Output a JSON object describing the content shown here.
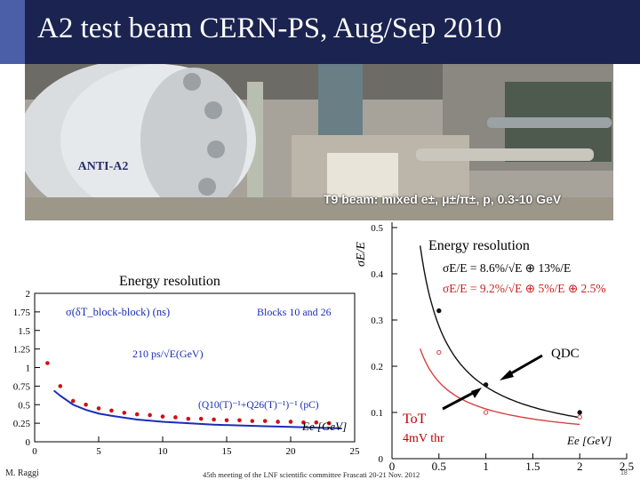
{
  "slide": {
    "title": "A2 test beam CERN-PS, Aug/Sep 2010",
    "beam_label": "T9 beam: mixed e±, μ±/π±, p, 0.3-10 GeV",
    "photo_sign": "ANTI-A2",
    "author": "M. Raggi",
    "meeting": "45th meeting of the LNF scientific committee Frascati 20-21 Nov. 2012",
    "page": "18",
    "colors": {
      "header_bg": "#1b2350",
      "header_accent": "#4a5fa8",
      "title_text": "#ffffff"
    }
  },
  "chart_data": [
    {
      "type": "scatter",
      "title": "Energy resolution",
      "xlabel": "Ee [GeV]",
      "ylabel": "",
      "xlim": [
        0,
        25
      ],
      "ylim": [
        0,
        2
      ],
      "xticks": [
        "0",
        "5",
        "10",
        "15",
        "20",
        "25"
      ],
      "yticks": [
        "0",
        "0.25",
        "0.5",
        "0.75",
        "1",
        "1.25",
        "1.5",
        "1.75",
        "2"
      ],
      "annotations": [
        "σ(δT_block-block) (ns)",
        "Blocks 10 and 26",
        "210 ps/√E(GeV)",
        "(Q10(T)⁻¹+Q26(T)⁻¹)⁻¹ (pC)"
      ],
      "series": [
        {
          "name": "",
          "color": "#d11010",
          "x": [
            1,
            2,
            3,
            4,
            5,
            6,
            7,
            8,
            9,
            10,
            11,
            12,
            13,
            14,
            15,
            16,
            17,
            18,
            19,
            20,
            21,
            22,
            23
          ],
          "y": [
            1.06,
            0.75,
            0.55,
            0.5,
            0.45,
            0.42,
            0.39,
            0.37,
            0.36,
            0.34,
            0.33,
            0.31,
            0.31,
            0.3,
            0.29,
            0.29,
            0.28,
            0.28,
            0.27,
            0.27,
            0.26,
            0.26,
            0.25
          ]
        },
        {
          "name": "",
          "color": "#1a2db8",
          "type": "line",
          "x": [
            1.5,
            2,
            3,
            4,
            5,
            6,
            8,
            10,
            12,
            14,
            16,
            18,
            20,
            22,
            24
          ],
          "y": [
            0.69,
            0.62,
            0.5,
            0.43,
            0.38,
            0.35,
            0.3,
            0.27,
            0.25,
            0.23,
            0.22,
            0.21,
            0.2,
            0.19,
            0.18
          ]
        }
      ]
    },
    {
      "type": "line",
      "title": "Energy resolution",
      "xlabel": "Ee [GeV]",
      "ylabel": "σE/E",
      "xlim": [
        0,
        2.5
      ],
      "ylim": [
        0,
        0.5
      ],
      "xticks": [
        "0",
        "0.5",
        "1",
        "1.5",
        "2",
        "2.5"
      ],
      "yticks": [
        "0",
        "0.1",
        "0.2",
        "0.3",
        "0.4",
        "0.5"
      ],
      "fit_qdc": "σE/E = 8.6%/√E ⊕ 13%/E",
      "fit_tot": "σE/E = 9.2%/√E ⊕ 5%/E ⊕ 2.5%",
      "annotations": [
        "QDC",
        "ToT",
        "4mV thr"
      ],
      "series": [
        {
          "name": "QDC",
          "color": "#111111",
          "x": [
            0.5,
            1.0,
            2.0
          ],
          "y": [
            0.32,
            0.16,
            0.1
          ]
        },
        {
          "name": "ToT",
          "color": "#d84040",
          "x": [
            0.5,
            1.0,
            2.0
          ],
          "y": [
            0.23,
            0.1,
            0.09
          ]
        }
      ]
    }
  ]
}
